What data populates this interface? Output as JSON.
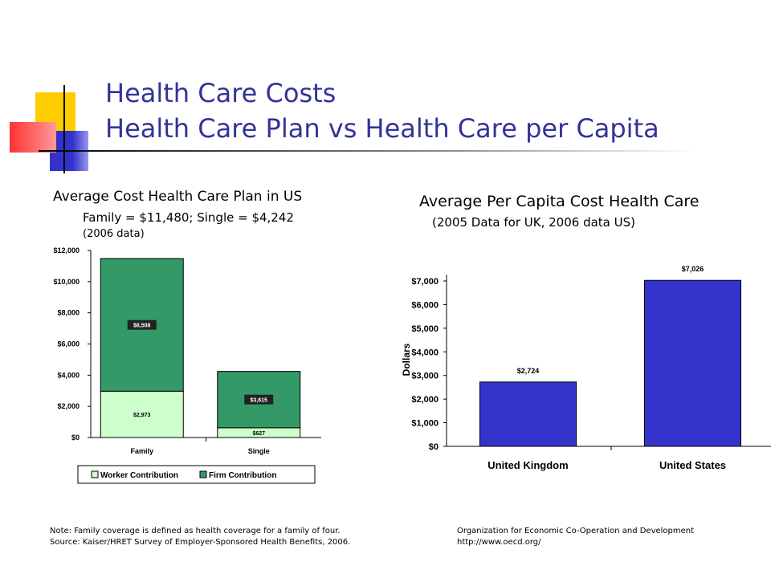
{
  "slide": {
    "title_line1": "Health Care Costs",
    "title_line2": "Health Care Plan vs Health Care per Capita",
    "colors": {
      "title": "#33339a",
      "deco_yellow": "#ffcc00",
      "deco_blue": "#3333cc",
      "deco_red": "#ff3333"
    }
  },
  "left": {
    "heading": "Average Cost Health Care Plan in US",
    "subheading": "Family = $11,480; Single = $4,242",
    "note_small": "(2006 data)",
    "footnote_line1": "Note:  Family coverage is defined as health coverage for a family of four.",
    "footnote_line2": "Source:  Kaiser/HRET Survey of Employer-Sponsored Health Benefits, 2006."
  },
  "right": {
    "heading": "Average Per Capita Cost Health Care",
    "subheading": "(2005 Data for UK, 2006 data US)",
    "footnote_line1": "Organization for Economic Co-Operation and Development",
    "footnote_line2": "http://www.oecd.org/"
  },
  "chart_data": [
    {
      "type": "bar",
      "stacked": true,
      "categories": [
        "Family",
        "Single"
      ],
      "series": [
        {
          "name": "Worker Contribution",
          "values": [
            2973,
            627
          ],
          "labels": [
            "$2,973",
            "$627"
          ],
          "color": "#ccffcc"
        },
        {
          "name": "Firm Contribution",
          "values": [
            8508,
            3615
          ],
          "labels": [
            "$8,508",
            "$3,615"
          ],
          "color": "#339966"
        }
      ],
      "ylim": [
        0,
        12000
      ],
      "yticks": [
        0,
        2000,
        4000,
        6000,
        8000,
        10000,
        12000
      ],
      "ytick_labels": [
        "$0",
        "$2,000",
        "$4,000",
        "$6,000",
        "$8,000",
        "$10,000",
        "$12,000"
      ],
      "legend_position": "bottom",
      "grid": false
    },
    {
      "type": "bar",
      "categories": [
        "United Kingdom",
        "United States"
      ],
      "values": [
        2724,
        7026
      ],
      "value_labels": [
        "$2,724",
        "$7,026"
      ],
      "color": "#3333cc",
      "ylabel": "Dollars",
      "ylim": [
        0,
        7000
      ],
      "yticks": [
        0,
        1000,
        2000,
        3000,
        4000,
        5000,
        6000,
        7000
      ],
      "ytick_labels": [
        "$0",
        "$1,000",
        "$2,000",
        "$3,000",
        "$4,000",
        "$5,000",
        "$6,000",
        "$7,000"
      ],
      "grid": false
    }
  ]
}
